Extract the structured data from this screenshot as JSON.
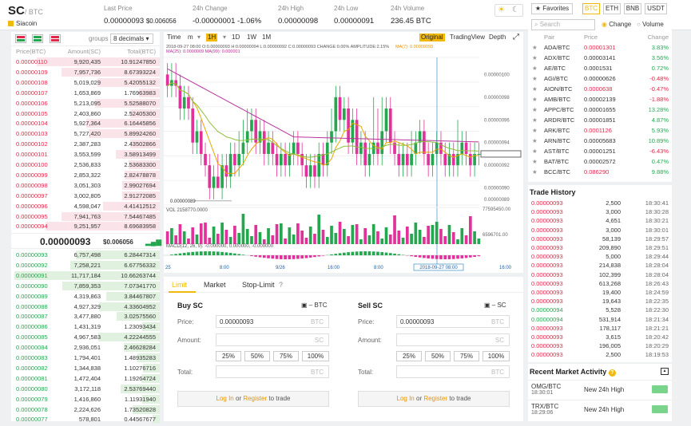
{
  "header": {
    "pair_base": "SC",
    "pair_quote": "/ BTC",
    "coin_name": "Siacoin",
    "stats": [
      {
        "label": "Last Price",
        "value": "0.00000093",
        "sub": "$0.006056"
      },
      {
        "label": "24h Change",
        "value": "-0.00000001",
        "sub": "-1.06%"
      },
      {
        "label": "24h High",
        "value": "0.00000098"
      },
      {
        "label": "24h Low",
        "value": "0.00000091"
      },
      {
        "label": "24h Volume",
        "value": "236.45 BTC"
      }
    ]
  },
  "orderbook": {
    "groups_label": "groups",
    "decimals": "8 decimals",
    "cols": [
      "Price(BTC)",
      "Amount(SC)",
      "Total(BTC)"
    ],
    "asks": [
      [
        "0.00000110",
        "9,920,435",
        "10.91247850"
      ],
      [
        "0.00000109",
        "7,957,736",
        "8.67393224"
      ],
      [
        "0.00000108",
        "5,019,029",
        "5.42055132"
      ],
      [
        "0.00000107",
        "1,653,869",
        "1.76963983"
      ],
      [
        "0.00000106",
        "5,213,095",
        "5.52588070"
      ],
      [
        "0.00000105",
        "2,403,860",
        "2.52405300"
      ],
      [
        "0.00000104",
        "5,927,364",
        "6.16445856"
      ],
      [
        "0.00000103",
        "5,727,420",
        "5.89924260"
      ],
      [
        "0.00000102",
        "2,387,283",
        "2.43502866"
      ],
      [
        "0.00000101",
        "3,553,599",
        "3.58913499"
      ],
      [
        "0.00000100",
        "2,536,833",
        "2.53683300"
      ],
      [
        "0.00000099",
        "2,853,322",
        "2.82478878"
      ],
      [
        "0.00000098",
        "3,051,303",
        "2.99027694"
      ],
      [
        "0.00000097",
        "3,002,805",
        "2.91272085"
      ],
      [
        "0.00000096",
        "4,598,047",
        "4.41412512"
      ],
      [
        "0.00000095",
        "7,941,763",
        "7.54467485"
      ],
      [
        "0.00000094",
        "9,251,957",
        "8.69683958"
      ]
    ],
    "last_price": "0.00000093",
    "last_usd": "$0.006056",
    "bids": [
      [
        "0.00000093",
        "6,757,498",
        "6.28447314"
      ],
      [
        "0.00000092",
        "7,258,221",
        "6.67756332"
      ],
      [
        "0.00000091",
        "11,717,184",
        "10.66263744"
      ],
      [
        "0.00000090",
        "7,859,353",
        "7.07341770"
      ],
      [
        "0.00000089",
        "4,319,863",
        "3.84467807"
      ],
      [
        "0.00000088",
        "4,927,329",
        "4.33604952"
      ],
      [
        "0.00000087",
        "3,477,880",
        "3.02575560"
      ],
      [
        "0.00000086",
        "1,431,319",
        "1.23093434"
      ],
      [
        "0.00000085",
        "4,967,583",
        "4.22244555"
      ],
      [
        "0.00000084",
        "2,936,051",
        "2.46628284"
      ],
      [
        "0.00000083",
        "1,794,401",
        "1.48935283"
      ],
      [
        "0.00000082",
        "1,344,838",
        "1.10276716"
      ],
      [
        "0.00000081",
        "1,472,404",
        "1.19264724"
      ],
      [
        "0.00000080",
        "3,172,118",
        "2.53769440"
      ],
      [
        "0.00000079",
        "1,416,860",
        "1.11931940"
      ],
      [
        "0.00000078",
        "2,224,626",
        "1.73520828"
      ],
      [
        "0.00000077",
        "578,801",
        "0.44567677"
      ]
    ]
  },
  "chart": {
    "time_label": "Time",
    "intervals": [
      "m",
      "1H",
      "1D",
      "1W",
      "1M"
    ],
    "active_interval": "1H",
    "views": [
      "Original",
      "TradingView",
      "Depth"
    ],
    "ohlc_text": "2018-09-27 08:00 O:0.00000093 H:0.00000094 L:0.00000092 C:0.00000093 CHANGE:0.00% AMPLITUDE:2.15%",
    "ma_text": "MA(7): 0.00000093",
    "ma_text2": "MA(25): 0.0000009  MA(99): 0.000001",
    "price_ticks": [
      "0.00000100",
      "0.00000098",
      "0.00000096",
      "0.00000094",
      "0.00000093",
      "0.00000092",
      "0.00000090",
      "0.00000089"
    ],
    "low_marker": "0.00000089",
    "vol_label": "VOL 2158770.0000",
    "vol_ticks": [
      "77595450.00",
      "6596701.00"
    ],
    "macd_label": "MACD(12, 26, 9): -0.000000, 0.000000, -0.000000",
    "time_ticks": [
      "25",
      "8:00",
      "9/26",
      "16:00",
      "8:00",
      "16:00",
      "9/27",
      "2018-09-27 08:00",
      "16:00"
    ],
    "candles": [
      [
        100,
        99,
        101,
        98
      ],
      [
        99,
        99.5,
        101,
        98
      ],
      [
        99.5,
        99,
        101,
        98
      ],
      [
        99,
        97,
        100,
        96
      ],
      [
        97,
        98,
        99,
        96
      ],
      [
        98,
        97,
        99,
        96
      ],
      [
        97,
        94,
        98,
        93
      ],
      [
        94,
        95,
        96,
        93
      ],
      [
        95,
        93,
        96,
        92
      ],
      [
        93,
        92,
        94,
        91
      ],
      [
        92,
        90,
        93,
        89
      ],
      [
        90,
        91,
        92,
        89
      ],
      [
        91,
        90,
        93,
        90
      ],
      [
        90,
        92,
        93,
        89
      ],
      [
        92,
        91,
        93,
        90
      ],
      [
        91,
        93,
        94,
        90
      ],
      [
        93,
        92,
        94,
        91
      ],
      [
        92,
        93,
        95,
        91
      ],
      [
        93,
        94,
        96,
        92
      ],
      [
        94,
        95,
        97,
        93
      ],
      [
        95,
        96,
        97,
        94
      ],
      [
        96,
        94,
        97,
        93
      ],
      [
        94,
        95,
        96,
        93
      ],
      [
        95,
        93,
        96,
        92
      ],
      [
        93,
        94,
        95,
        92
      ],
      [
        94,
        93,
        95,
        92
      ],
      [
        93,
        92,
        94,
        91
      ],
      [
        92,
        93,
        94,
        91
      ],
      [
        93,
        92,
        94,
        91
      ],
      [
        92,
        93,
        94,
        91
      ],
      [
        93,
        94,
        95,
        92
      ],
      [
        94,
        93,
        95,
        92
      ],
      [
        93,
        92,
        94,
        91
      ],
      [
        92,
        91,
        93,
        90
      ],
      [
        91,
        92,
        93,
        90
      ],
      [
        92,
        91,
        93,
        90
      ],
      [
        91,
        93,
        94,
        90
      ],
      [
        93,
        92,
        94,
        91
      ],
      [
        92,
        94,
        95,
        91
      ],
      [
        94,
        95,
        97,
        93
      ],
      [
        95,
        98,
        99,
        94
      ],
      [
        98,
        96,
        99,
        95
      ],
      [
        96,
        97,
        98,
        95
      ],
      [
        97,
        94,
        98,
        93
      ],
      [
        94,
        96,
        97,
        93
      ],
      [
        96,
        93,
        97,
        92
      ],
      [
        93,
        94,
        95,
        92
      ],
      [
        94,
        92,
        95,
        91
      ],
      [
        92,
        93,
        94,
        91
      ],
      [
        93,
        94,
        98,
        92
      ],
      [
        94,
        93,
        97,
        92
      ],
      [
        93,
        95,
        98,
        92
      ],
      [
        95,
        97,
        98,
        94
      ],
      [
        97,
        94,
        98,
        93
      ],
      [
        94,
        93,
        95,
        92
      ],
      [
        93,
        92,
        94,
        91
      ],
      [
        92,
        93,
        94,
        91
      ],
      [
        93,
        92,
        94,
        91
      ],
      [
        92,
        93,
        95,
        91
      ],
      [
        93,
        94,
        95,
        92
      ],
      [
        94,
        95,
        96,
        93
      ],
      [
        95,
        93,
        96,
        92
      ],
      [
        93,
        92,
        94,
        91
      ],
      [
        92,
        93,
        94,
        91
      ],
      [
        93,
        94,
        95,
        92
      ],
      [
        94,
        93,
        95,
        92
      ],
      [
        93,
        92,
        94,
        91
      ],
      [
        92,
        93,
        94,
        91
      ],
      [
        93,
        92,
        94,
        91
      ],
      [
        92,
        93,
        96,
        91
      ],
      [
        93,
        94,
        95,
        92
      ],
      [
        94,
        93,
        95,
        92
      ],
      [
        93,
        92,
        94,
        91
      ],
      [
        92,
        93,
        94,
        91
      ],
      [
        93,
        93,
        94,
        92
      ]
    ]
  },
  "form": {
    "tabs": [
      "Limit",
      "Market",
      "Stop-Limit"
    ],
    "buy": {
      "title": "Buy SC",
      "bal": "– BTC",
      "price_label": "Price:",
      "price": "0.00000093",
      "unit": "BTC",
      "amount_label": "Amount:",
      "amount_unit": "SC",
      "total_label": "Total:",
      "total_unit": "BTC"
    },
    "sell": {
      "title": "Sell SC",
      "bal": "– SC",
      "price_label": "Price:",
      "price": "0.00000093",
      "unit": "BTC",
      "amount_label": "Amount:",
      "amount_unit": "SC",
      "total_label": "Total:",
      "total_unit": "BTC"
    },
    "pcts": [
      "25%",
      "50%",
      "75%",
      "100%"
    ],
    "login": "Log In",
    "or": " or ",
    "register": "Register",
    "to_trade": " to trade"
  },
  "markets": {
    "tabs": [
      "Favorites",
      "BTC",
      "ETH",
      "BNB",
      "USDT"
    ],
    "active": "BTC",
    "search_placeholder": "Search",
    "opt_change": "Change",
    "opt_volume": "Volume",
    "cols": [
      "Pair",
      "Price",
      "Change"
    ],
    "rows": [
      [
        "ADA/BTC",
        "0.00001301",
        "3.83%",
        "p"
      ],
      [
        "ADX/BTC",
        "0.00003141",
        "3.56%",
        "p"
      ],
      [
        "AE/BTC",
        "0.0001531",
        "0.72%",
        "p"
      ],
      [
        "AGI/BTC",
        "0.00000626",
        "-0.48%",
        "n"
      ],
      [
        "AION/BTC",
        "0.0000638",
        "-0.47%",
        "n"
      ],
      [
        "AMB/BTC",
        "0.00002139",
        "-1.88%",
        "n"
      ],
      [
        "APPC/BTC",
        "0.00001655",
        "13.28%",
        "p"
      ],
      [
        "ARDR/BTC",
        "0.00001851",
        "4.87%",
        "p"
      ],
      [
        "ARK/BTC",
        "0.0001126",
        "5.93%",
        "p"
      ],
      [
        "ARN/BTC",
        "0.00005683",
        "10.89%",
        "p"
      ],
      [
        "AST/BTC",
        "0.00001251",
        "-6.43%",
        "n"
      ],
      [
        "BAT/BTC",
        "0.00002572",
        "0.47%",
        "p"
      ],
      [
        "BCC/BTC",
        "0.086290",
        "9.88%",
        "p"
      ]
    ]
  },
  "trade_history": {
    "title": "Trade History",
    "rows": [
      [
        "0.00000093",
        "2,500",
        "18:30:41",
        "n"
      ],
      [
        "0.00000093",
        "3,000",
        "18:30:28",
        "n"
      ],
      [
        "0.00000093",
        "4,651",
        "18:30:21",
        "n"
      ],
      [
        "0.00000093",
        "3,000",
        "18:30:01",
        "n"
      ],
      [
        "0.00000093",
        "58,139",
        "18:29:57",
        "n"
      ],
      [
        "0.00000093",
        "209,890",
        "18:29:51",
        "n"
      ],
      [
        "0.00000093",
        "5,000",
        "18:29:44",
        "n"
      ],
      [
        "0.00000093",
        "214,838",
        "18:28:04",
        "n"
      ],
      [
        "0.00000093",
        "102,399",
        "18:28:04",
        "n"
      ],
      [
        "0.00000093",
        "613,268",
        "18:26:43",
        "n"
      ],
      [
        "0.00000093",
        "19,400",
        "18:24:59",
        "n"
      ],
      [
        "0.00000093",
        "19,643",
        "18:22:35",
        "n"
      ],
      [
        "0.00000094",
        "5,528",
        "18:22:30",
        "p"
      ],
      [
        "0.00000094",
        "531,914",
        "18:21:34",
        "p"
      ],
      [
        "0.00000093",
        "178,117",
        "18:21:21",
        "n"
      ],
      [
        "0.00000093",
        "3,615",
        "18:20:42",
        "n"
      ],
      [
        "0.00000093",
        "196,005",
        "18:20:29",
        "n"
      ],
      [
        "0.00000093",
        "2,500",
        "18:19:53",
        "n"
      ]
    ]
  },
  "recent": {
    "title": "Recent Market Activity",
    "rows": [
      {
        "pair": "OMG/BTC",
        "time": "18:30:01",
        "event": "New 24h High"
      },
      {
        "pair": "TRX/BTC",
        "time": "18:29:06",
        "event": "New 24h High"
      }
    ]
  },
  "colors": {
    "accent": "#f0b90b",
    "up": "#25a750",
    "down": "#e0294a",
    "candle_up": "#25a750",
    "candle_down": "#e0329a"
  }
}
